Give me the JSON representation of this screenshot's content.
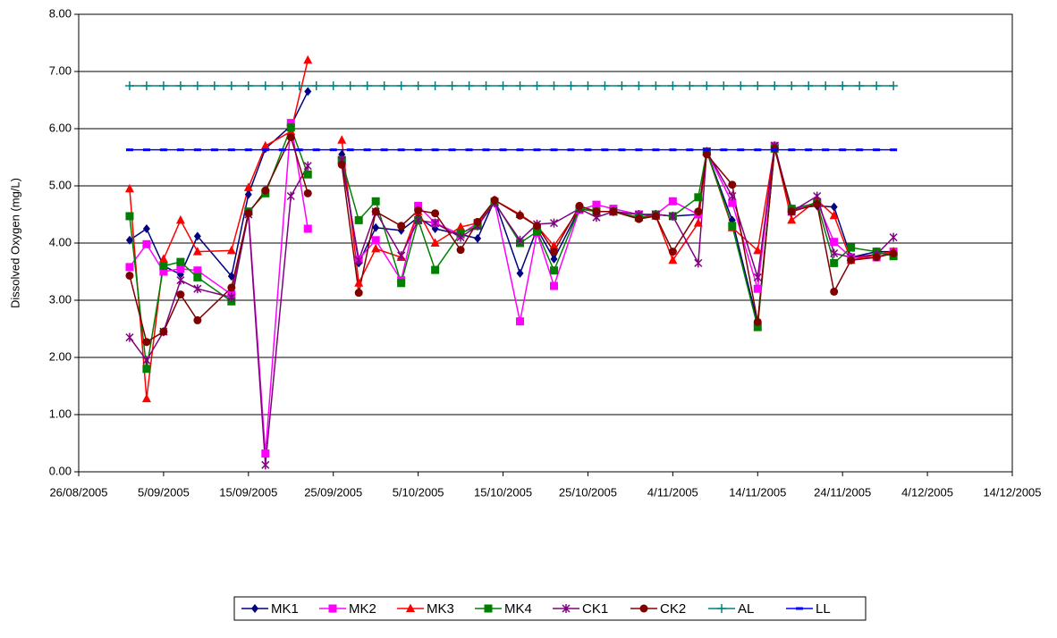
{
  "chart_data": {
    "type": "line",
    "y_label": "Dissolved Oxygen (mg/L)",
    "x": [
      "1/09/2005",
      "3/09/2005",
      "5/09/2005",
      "7/09/2005",
      "9/09/2005",
      "13/09/2005",
      "15/09/2005",
      "17/09/2005",
      "20/09/2005",
      "22/09/2005",
      "24/09/2005",
      "26/09/2005",
      "28/09/2005",
      "30/09/2005",
      "3/10/2005",
      "5/10/2005",
      "7/10/2005",
      "10/10/2005",
      "12/10/2005",
      "14/10/2005",
      "17/10/2005",
      "19/10/2005",
      "21/10/2005",
      "24/10/2005",
      "26/10/2005",
      "28/10/2005",
      "31/10/2005",
      "2/11/2005",
      "4/11/2005",
      "7/11/2005",
      "8/11/2005",
      "11/11/2005",
      "14/11/2005",
      "16/11/2005",
      "18/11/2005",
      "21/11/2005",
      "23/11/2005",
      "25/11/2005",
      "28/11/2005",
      "30/11/2005"
    ],
    "series": [
      {
        "name": "MK1",
        "color": "#000080",
        "marker": "diamond",
        "values": [
          4.05,
          4.25,
          3.6,
          3.45,
          4.12,
          3.42,
          4.85,
          5.65,
          6.05,
          6.65,
          null,
          5.55,
          3.65,
          4.27,
          4.22,
          4.45,
          4.25,
          4.15,
          4.08,
          4.75,
          3.47,
          4.25,
          3.72,
          4.6,
          4.55,
          4.55,
          4.5,
          4.5,
          4.47,
          4.5,
          5.6,
          4.4,
          2.6,
          5.65,
          4.6,
          4.65,
          4.63,
          3.75,
          3.85,
          3.85
        ]
      },
      {
        "name": "MK2",
        "color": "#ff00ff",
        "marker": "square",
        "values": [
          3.58,
          3.98,
          3.5,
          3.55,
          3.52,
          3.1,
          4.55,
          0.32,
          6.1,
          4.25,
          null,
          5.45,
          3.72,
          4.05,
          3.35,
          4.65,
          4.35,
          4.15,
          4.35,
          4.72,
          2.63,
          4.18,
          3.25,
          4.58,
          4.67,
          4.6,
          4.5,
          4.5,
          4.73,
          4.5,
          5.6,
          4.7,
          3.2,
          5.7,
          4.55,
          4.72,
          4.02,
          3.75,
          3.75,
          3.85
        ]
      },
      {
        "name": "MK3",
        "color": "#ff0000",
        "marker": "triangle",
        "values": [
          4.95,
          1.28,
          3.72,
          4.4,
          3.85,
          3.87,
          4.97,
          5.7,
          5.95,
          7.2,
          null,
          5.8,
          3.3,
          3.9,
          3.75,
          4.55,
          4.0,
          4.28,
          4.35,
          4.75,
          4.5,
          4.3,
          3.95,
          4.6,
          4.55,
          4.55,
          4.45,
          4.47,
          3.7,
          4.35,
          5.6,
          4.27,
          3.87,
          5.68,
          4.4,
          4.75,
          4.48,
          3.7,
          3.8,
          3.85
        ]
      },
      {
        "name": "MK4",
        "color": "#008000",
        "marker": "square",
        "values": [
          4.47,
          1.8,
          3.6,
          3.67,
          3.4,
          2.98,
          4.55,
          4.87,
          6.02,
          5.2,
          null,
          5.45,
          4.4,
          4.73,
          3.3,
          4.4,
          3.53,
          4.17,
          4.3,
          4.72,
          4.0,
          4.2,
          3.52,
          4.6,
          4.55,
          4.55,
          4.45,
          4.5,
          4.47,
          4.8,
          5.6,
          4.3,
          2.53,
          5.65,
          4.6,
          4.7,
          3.65,
          3.92,
          3.85,
          3.77
        ]
      },
      {
        "name": "CK1",
        "color": "#800080",
        "marker": "star",
        "values": [
          2.35,
          1.95,
          2.45,
          3.35,
          3.2,
          3.05,
          4.5,
          0.12,
          4.82,
          5.35,
          null,
          5.45,
          3.7,
          4.55,
          3.78,
          4.4,
          4.35,
          4.1,
          4.3,
          4.7,
          4.05,
          4.33,
          4.35,
          4.6,
          4.45,
          4.55,
          4.5,
          4.5,
          4.47,
          3.65,
          5.6,
          4.82,
          3.4,
          5.7,
          4.55,
          4.82,
          3.82,
          3.75,
          3.8,
          4.1
        ]
      },
      {
        "name": "CK2",
        "color": "#800000",
        "marker": "circle",
        "values": [
          3.43,
          2.27,
          2.45,
          3.1,
          2.65,
          3.22,
          4.52,
          4.92,
          5.85,
          4.87,
          null,
          5.37,
          3.13,
          4.55,
          4.3,
          4.57,
          4.52,
          3.88,
          4.37,
          4.75,
          4.48,
          4.3,
          3.85,
          4.65,
          4.55,
          4.55,
          4.42,
          4.47,
          3.85,
          4.55,
          5.55,
          5.02,
          2.62,
          5.65,
          4.55,
          4.68,
          3.15,
          3.7,
          3.75,
          3.82
        ]
      },
      {
        "name": "AL",
        "color": "#008080",
        "marker": "plus",
        "x": [
          "1/09/2005",
          "3/09/2005",
          "5/09/2005",
          "7/09/2005",
          "9/09/2005",
          "11/09/2005",
          "13/09/2005",
          "15/09/2005",
          "17/09/2005",
          "19/09/2005",
          "21/09/2005",
          "23/09/2005",
          "25/09/2005",
          "27/09/2005",
          "29/09/2005",
          "1/10/2005",
          "3/10/2005",
          "5/10/2005",
          "7/10/2005",
          "9/10/2005",
          "11/10/2005",
          "13/10/2005",
          "15/10/2005",
          "17/10/2005",
          "19/10/2005",
          "21/10/2005",
          "23/10/2005",
          "25/10/2005",
          "27/10/2005",
          "29/10/2005",
          "31/10/2005",
          "2/11/2005",
          "4/11/2005",
          "6/11/2005",
          "8/11/2005",
          "10/11/2005",
          "12/11/2005",
          "14/11/2005",
          "16/11/2005",
          "18/11/2005",
          "20/11/2005",
          "22/11/2005",
          "24/11/2005",
          "26/11/2005",
          "28/11/2005",
          "30/11/2005"
        ],
        "values": [
          6.75,
          6.75,
          6.75,
          6.75,
          6.75,
          6.75,
          6.75,
          6.75,
          6.75,
          6.75,
          6.75,
          6.75,
          6.75,
          6.75,
          6.75,
          6.75,
          6.75,
          6.75,
          6.75,
          6.75,
          6.75,
          6.75,
          6.75,
          6.75,
          6.75,
          6.75,
          6.75,
          6.75,
          6.75,
          6.75,
          6.75,
          6.75,
          6.75,
          6.75,
          6.75,
          6.75,
          6.75,
          6.75,
          6.75,
          6.75,
          6.75,
          6.75,
          6.75,
          6.75,
          6.75,
          6.75
        ]
      },
      {
        "name": "LL",
        "color": "#0000ff",
        "marker": "dash",
        "x": [
          "1/09/2005",
          "3/09/2005",
          "5/09/2005",
          "7/09/2005",
          "9/09/2005",
          "11/09/2005",
          "13/09/2005",
          "15/09/2005",
          "17/09/2005",
          "19/09/2005",
          "21/09/2005",
          "23/09/2005",
          "25/09/2005",
          "27/09/2005",
          "29/09/2005",
          "1/10/2005",
          "3/10/2005",
          "5/10/2005",
          "7/10/2005",
          "9/10/2005",
          "11/10/2005",
          "13/10/2005",
          "15/10/2005",
          "17/10/2005",
          "19/10/2005",
          "21/10/2005",
          "23/10/2005",
          "25/10/2005",
          "27/10/2005",
          "29/10/2005",
          "31/10/2005",
          "2/11/2005",
          "4/11/2005",
          "6/11/2005",
          "8/11/2005",
          "10/11/2005",
          "12/11/2005",
          "14/11/2005",
          "16/11/2005",
          "18/11/2005",
          "20/11/2005",
          "22/11/2005",
          "24/11/2005",
          "26/11/2005",
          "28/11/2005",
          "30/11/2005"
        ],
        "values": [
          5.63,
          5.63,
          5.63,
          5.63,
          5.63,
          5.63,
          5.63,
          5.63,
          5.63,
          5.63,
          5.63,
          5.63,
          5.63,
          5.63,
          5.63,
          5.63,
          5.63,
          5.63,
          5.63,
          5.63,
          5.63,
          5.63,
          5.63,
          5.63,
          5.63,
          5.63,
          5.63,
          5.63,
          5.63,
          5.63,
          5.63,
          5.63,
          5.63,
          5.63,
          5.63,
          5.63,
          5.63,
          5.63,
          5.63,
          5.63,
          5.63,
          5.63,
          5.63,
          5.63,
          5.63,
          5.63
        ]
      }
    ],
    "xlim": [
      "26/08/2005",
      "14/12/2005"
    ],
    "xticks": [
      "26/08/2005",
      "5/09/2005",
      "15/09/2005",
      "25/09/2005",
      "5/10/2005",
      "15/10/2005",
      "25/10/2005",
      "4/11/2005",
      "14/11/2005",
      "24/11/2005",
      "4/12/2005",
      "14/12/2005"
    ],
    "ylim": [
      0,
      8
    ],
    "yticks": [
      {
        "value": 0,
        "label": "0.00"
      },
      {
        "value": 1,
        "label": "1.00"
      },
      {
        "value": 2,
        "label": "2.00"
      },
      {
        "value": 3,
        "label": "3.00"
      },
      {
        "value": 4,
        "label": "4.00"
      },
      {
        "value": 5,
        "label": "5.00"
      },
      {
        "value": 6,
        "label": "6.00"
      },
      {
        "value": 7,
        "label": "7.00"
      },
      {
        "value": 8,
        "label": "8.00"
      }
    ],
    "grid": true,
    "legend": "bottom"
  }
}
